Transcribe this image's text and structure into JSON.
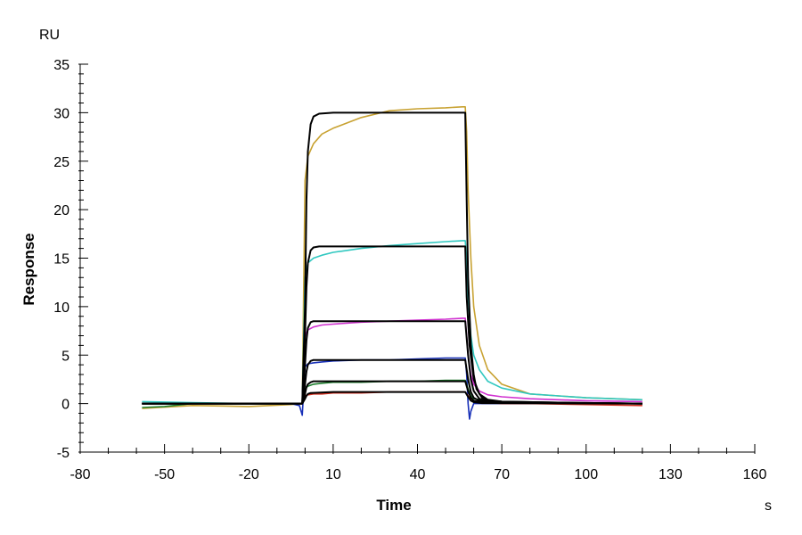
{
  "chart_data": {
    "type": "line",
    "xlabel": "Time",
    "ylabel": "Response",
    "x_unit": "s",
    "y_unit": "RU",
    "xlim": [
      -80,
      160
    ],
    "ylim": [
      -5,
      35
    ],
    "xticks": [
      -80,
      -50,
      -20,
      10,
      40,
      70,
      100,
      130,
      160
    ],
    "yticks": [
      -5,
      0,
      5,
      10,
      15,
      20,
      25,
      30,
      35
    ],
    "grid": false,
    "series": [
      {
        "color": "#c8a232",
        "kind": "measured",
        "points": [
          [
            -58,
            -0.5
          ],
          [
            -40,
            -0.2
          ],
          [
            -20,
            -0.3
          ],
          [
            -5,
            -0.1
          ],
          [
            -1,
            0
          ],
          [
            0,
            23
          ],
          [
            1,
            25.5
          ],
          [
            3,
            26.8
          ],
          [
            6,
            27.8
          ],
          [
            10,
            28.4
          ],
          [
            20,
            29.5
          ],
          [
            30,
            30.2
          ],
          [
            40,
            30.4
          ],
          [
            50,
            30.5
          ],
          [
            56,
            30.6
          ],
          [
            57,
            30.6
          ],
          [
            57.5,
            28
          ],
          [
            58,
            22
          ],
          [
            59,
            15
          ],
          [
            60,
            10
          ],
          [
            62,
            6
          ],
          [
            65,
            3.5
          ],
          [
            70,
            2
          ],
          [
            80,
            1
          ],
          [
            100,
            0.6
          ],
          [
            120,
            0.4
          ]
        ]
      },
      {
        "color": "#30c8c0",
        "kind": "measured",
        "points": [
          [
            -58,
            0.2
          ],
          [
            -40,
            0.1
          ],
          [
            -20,
            0
          ],
          [
            -5,
            0
          ],
          [
            -1,
            0
          ],
          [
            0,
            13
          ],
          [
            1,
            14.5
          ],
          [
            3,
            15
          ],
          [
            6,
            15.3
          ],
          [
            10,
            15.6
          ],
          [
            20,
            16
          ],
          [
            30,
            16.3
          ],
          [
            40,
            16.5
          ],
          [
            50,
            16.7
          ],
          [
            56,
            16.8
          ],
          [
            57,
            16.8
          ],
          [
            57.5,
            15
          ],
          [
            58,
            11
          ],
          [
            59,
            7
          ],
          [
            60,
            5
          ],
          [
            62,
            3.5
          ],
          [
            65,
            2.3
          ],
          [
            70,
            1.6
          ],
          [
            80,
            1
          ],
          [
            100,
            0.6
          ],
          [
            120,
            0.4
          ]
        ]
      },
      {
        "color": "#d030d0",
        "kind": "measured",
        "points": [
          [
            -58,
            0
          ],
          [
            -40,
            0
          ],
          [
            -20,
            0
          ],
          [
            -5,
            0
          ],
          [
            -1,
            0
          ],
          [
            0,
            7
          ],
          [
            1,
            7.6
          ],
          [
            3,
            7.9
          ],
          [
            6,
            8.1
          ],
          [
            10,
            8.2
          ],
          [
            20,
            8.4
          ],
          [
            30,
            8.5
          ],
          [
            40,
            8.6
          ],
          [
            50,
            8.7
          ],
          [
            56,
            8.8
          ],
          [
            57,
            8.8
          ],
          [
            57.5,
            7
          ],
          [
            58,
            5
          ],
          [
            59,
            3
          ],
          [
            60,
            2
          ],
          [
            62,
            1.3
          ],
          [
            65,
            0.9
          ],
          [
            70,
            0.7
          ],
          [
            80,
            0.5
          ],
          [
            100,
            0.3
          ],
          [
            120,
            0.2
          ]
        ]
      },
      {
        "color": "#1830b8",
        "kind": "measured",
        "points": [
          [
            -58,
            0
          ],
          [
            -40,
            0
          ],
          [
            -20,
            0
          ],
          [
            -5,
            0
          ],
          [
            -2,
            -0.2
          ],
          [
            -1,
            -1.2
          ],
          [
            0,
            3.8
          ],
          [
            1,
            4.1
          ],
          [
            3,
            4.2
          ],
          [
            6,
            4.3
          ],
          [
            10,
            4.4
          ],
          [
            20,
            4.5
          ],
          [
            30,
            4.5
          ],
          [
            40,
            4.6
          ],
          [
            50,
            4.7
          ],
          [
            56,
            4.7
          ],
          [
            57,
            4.7
          ],
          [
            57.5,
            3
          ],
          [
            58,
            0
          ],
          [
            58.5,
            -1.6
          ],
          [
            59,
            -0.8
          ],
          [
            60,
            0
          ],
          [
            62,
            0
          ],
          [
            70,
            0
          ],
          [
            80,
            0
          ],
          [
            100,
            0
          ],
          [
            120,
            0
          ]
        ]
      },
      {
        "color": "#208030",
        "kind": "measured",
        "points": [
          [
            -58,
            -0.4
          ],
          [
            -50,
            -0.3
          ],
          [
            -40,
            0
          ],
          [
            -20,
            0
          ],
          [
            -5,
            0
          ],
          [
            -1,
            0
          ],
          [
            0,
            1.5
          ],
          [
            1,
            1.8
          ],
          [
            3,
            2
          ],
          [
            6,
            2.1
          ],
          [
            10,
            2.2
          ],
          [
            20,
            2.2
          ],
          [
            30,
            2.3
          ],
          [
            40,
            2.3
          ],
          [
            50,
            2.4
          ],
          [
            56,
            2.4
          ],
          [
            57,
            2.4
          ],
          [
            58,
            1.5
          ],
          [
            59,
            0.8
          ],
          [
            60,
            0.5
          ],
          [
            65,
            0.3
          ],
          [
            70,
            0.2
          ],
          [
            80,
            0.1
          ],
          [
            100,
            0
          ],
          [
            120,
            0
          ]
        ]
      },
      {
        "color": "#d03020",
        "kind": "measured",
        "points": [
          [
            -58,
            0
          ],
          [
            -40,
            0
          ],
          [
            -20,
            0
          ],
          [
            -5,
            0
          ],
          [
            -1,
            0
          ],
          [
            0,
            0.8
          ],
          [
            1,
            0.9
          ],
          [
            3,
            1
          ],
          [
            6,
            1
          ],
          [
            10,
            1.1
          ],
          [
            20,
            1.1
          ],
          [
            30,
            1.2
          ],
          [
            40,
            1.2
          ],
          [
            50,
            1.2
          ],
          [
            56,
            1.2
          ],
          [
            57,
            1.2
          ],
          [
            58,
            0.8
          ],
          [
            59,
            0.5
          ],
          [
            60,
            0.3
          ],
          [
            65,
            0.1
          ],
          [
            70,
            0
          ],
          [
            80,
            0
          ],
          [
            100,
            -0.1
          ],
          [
            120,
            -0.2
          ]
        ]
      },
      {
        "color": "#000000",
        "kind": "fit",
        "points": [
          [
            -58,
            0
          ],
          [
            -20,
            0
          ],
          [
            -1,
            0
          ],
          [
            0,
            10
          ],
          [
            0.5,
            21
          ],
          [
            1,
            26
          ],
          [
            2,
            28.8
          ],
          [
            3,
            29.6
          ],
          [
            5,
            29.9
          ],
          [
            10,
            30
          ],
          [
            30,
            30
          ],
          [
            57,
            30
          ],
          [
            57.5,
            21
          ],
          [
            58,
            13
          ],
          [
            59,
            6
          ],
          [
            60,
            3
          ],
          [
            61,
            1.5
          ],
          [
            63,
            0.6
          ],
          [
            66,
            0.3
          ],
          [
            70,
            0.2
          ],
          [
            90,
            0.1
          ],
          [
            120,
            0
          ]
        ]
      },
      {
        "color": "#000000",
        "kind": "fit",
        "points": [
          [
            -58,
            0
          ],
          [
            -20,
            0
          ],
          [
            -1,
            0
          ],
          [
            0,
            7
          ],
          [
            0.5,
            12
          ],
          [
            1,
            14.5
          ],
          [
            2,
            15.8
          ],
          [
            3,
            16.1
          ],
          [
            5,
            16.2
          ],
          [
            10,
            16.2
          ],
          [
            30,
            16.2
          ],
          [
            57,
            16.2
          ],
          [
            57.5,
            11
          ],
          [
            58.5,
            6
          ],
          [
            60,
            2.5
          ],
          [
            62,
            1
          ],
          [
            65,
            0.4
          ],
          [
            70,
            0.2
          ],
          [
            90,
            0.1
          ],
          [
            120,
            0
          ]
        ]
      },
      {
        "color": "#000000",
        "kind": "fit",
        "points": [
          [
            -58,
            0
          ],
          [
            -20,
            0
          ],
          [
            -1,
            0
          ],
          [
            0,
            4
          ],
          [
            0.5,
            6.5
          ],
          [
            1,
            7.8
          ],
          [
            2,
            8.4
          ],
          [
            3,
            8.5
          ],
          [
            10,
            8.5
          ],
          [
            30,
            8.5
          ],
          [
            57,
            8.5
          ],
          [
            58,
            5
          ],
          [
            59,
            2.5
          ],
          [
            60,
            1.3
          ],
          [
            62,
            0.5
          ],
          [
            66,
            0.2
          ],
          [
            80,
            0.1
          ],
          [
            120,
            0
          ]
        ]
      },
      {
        "color": "#000000",
        "kind": "fit",
        "points": [
          [
            -58,
            0
          ],
          [
            -20,
            0
          ],
          [
            -1,
            0
          ],
          [
            0,
            2
          ],
          [
            0.5,
            3.3
          ],
          [
            1,
            4
          ],
          [
            2,
            4.4
          ],
          [
            3,
            4.5
          ],
          [
            10,
            4.5
          ],
          [
            30,
            4.5
          ],
          [
            57,
            4.5
          ],
          [
            58,
            2.5
          ],
          [
            59,
            1.2
          ],
          [
            60,
            0.6
          ],
          [
            62,
            0.3
          ],
          [
            66,
            0.1
          ],
          [
            120,
            0
          ]
        ]
      },
      {
        "color": "#000000",
        "kind": "fit",
        "points": [
          [
            -58,
            0
          ],
          [
            -20,
            0
          ],
          [
            -1,
            0
          ],
          [
            0,
            1
          ],
          [
            0.5,
            1.7
          ],
          [
            1,
            2
          ],
          [
            2,
            2.2
          ],
          [
            3,
            2.3
          ],
          [
            10,
            2.3
          ],
          [
            30,
            2.3
          ],
          [
            57,
            2.3
          ],
          [
            58,
            1.3
          ],
          [
            59,
            0.6
          ],
          [
            60,
            0.3
          ],
          [
            63,
            0.1
          ],
          [
            120,
            0
          ]
        ]
      },
      {
        "color": "#000000",
        "kind": "fit",
        "points": [
          [
            -58,
            0
          ],
          [
            -20,
            0
          ],
          [
            -1,
            0
          ],
          [
            0,
            0.5
          ],
          [
            0.5,
            0.8
          ],
          [
            1,
            1
          ],
          [
            2,
            1.1
          ],
          [
            10,
            1.2
          ],
          [
            30,
            1.2
          ],
          [
            57,
            1.2
          ],
          [
            58,
            0.7
          ],
          [
            59,
            0.3
          ],
          [
            60,
            0.15
          ],
          [
            63,
            0.05
          ],
          [
            120,
            0
          ]
        ]
      }
    ]
  }
}
